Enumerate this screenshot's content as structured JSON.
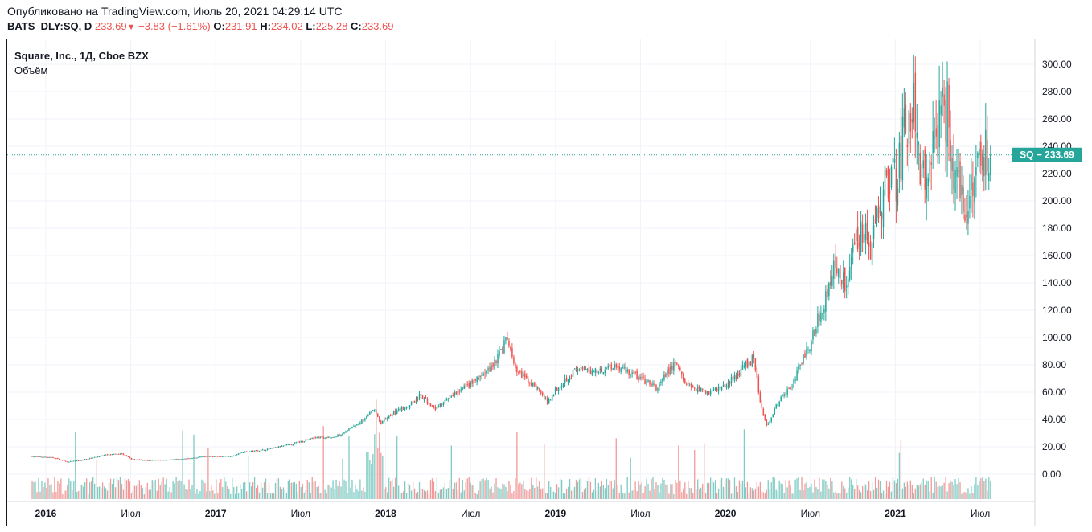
{
  "header": {
    "published": "Опубликовано на TradingView.com, Июль 20, 2021 04:29:14 UTC",
    "symbol": "BATS_DLY:SQ, D",
    "last": "233.69",
    "arrow": "▼",
    "change": "−3.83 (−1.61%)",
    "o_label": "O:",
    "o_value": "231.91",
    "h_label": "H:",
    "h_value": "234.02",
    "l_label": "L:",
    "l_value": "225.28",
    "c_label": "C:",
    "c_value": "233.69"
  },
  "legend": {
    "title": "Square, Inc., 1Д, Cboe BZX",
    "volume": "Объём"
  },
  "price_label": {
    "text": "SQ − 233.69",
    "value": 233.69,
    "color": "#26a69a"
  },
  "colors": {
    "up": "#26a69a",
    "down": "#ef5350",
    "vol_up": "#80cbc4",
    "vol_down": "#f19a99",
    "grid": "#f0f3fa"
  },
  "chart_data": {
    "type": "candlestick",
    "title": "Square, Inc., 1Д, Cboe BZX",
    "ylim": [
      -20,
      310
    ],
    "y_ticks": [
      "300.00",
      "280.00",
      "260.00",
      "240.00",
      "220.00",
      "200.00",
      "180.00",
      "160.00",
      "140.00",
      "120.00",
      "100.00",
      "80.00",
      "60.00",
      "40.00",
      "20.00",
      "0.00"
    ],
    "y_tick_values": [
      300,
      280,
      260,
      240,
      220,
      200,
      180,
      160,
      140,
      120,
      100,
      80,
      60,
      40,
      20,
      0
    ],
    "x_ticks": [
      {
        "label": "2016",
        "t": 2016.0,
        "bold": true
      },
      {
        "label": "Июл",
        "t": 2016.5,
        "bold": false
      },
      {
        "label": "2017",
        "t": 2017.0,
        "bold": true
      },
      {
        "label": "Июл",
        "t": 2017.5,
        "bold": false
      },
      {
        "label": "2018",
        "t": 2018.0,
        "bold": true
      },
      {
        "label": "Июл",
        "t": 2018.5,
        "bold": false
      },
      {
        "label": "2019",
        "t": 2019.0,
        "bold": true
      },
      {
        "label": "Июл",
        "t": 2019.5,
        "bold": false
      },
      {
        "label": "2020",
        "t": 2020.0,
        "bold": true
      },
      {
        "label": "Июл",
        "t": 2020.5,
        "bold": false
      },
      {
        "label": "2021",
        "t": 2021.0,
        "bold": true
      },
      {
        "label": "Июл",
        "t": 2021.5,
        "bold": false
      }
    ],
    "x_range": [
      2015.92,
      2021.58
    ],
    "price_path": [
      [
        2015.92,
        13
      ],
      [
        2016.05,
        12
      ],
      [
        2016.12,
        9
      ],
      [
        2016.2,
        10
      ],
      [
        2016.35,
        14
      ],
      [
        2016.45,
        15
      ],
      [
        2016.5,
        11
      ],
      [
        2016.6,
        10
      ],
      [
        2016.8,
        11
      ],
      [
        2016.95,
        13
      ],
      [
        2017.1,
        13
      ],
      [
        2017.15,
        16
      ],
      [
        2017.3,
        18
      ],
      [
        2017.45,
        22
      ],
      [
        2017.5,
        24
      ],
      [
        2017.6,
        27
      ],
      [
        2017.7,
        27
      ],
      [
        2017.8,
        34
      ],
      [
        2017.88,
        40
      ],
      [
        2017.93,
        48
      ],
      [
        2017.97,
        38
      ],
      [
        2018.05,
        45
      ],
      [
        2018.15,
        52
      ],
      [
        2018.2,
        57
      ],
      [
        2018.3,
        48
      ],
      [
        2018.4,
        58
      ],
      [
        2018.5,
        66
      ],
      [
        2018.6,
        75
      ],
      [
        2018.67,
        88
      ],
      [
        2018.72,
        99
      ],
      [
        2018.75,
        80
      ],
      [
        2018.8,
        72
      ],
      [
        2018.9,
        62
      ],
      [
        2018.95,
        52
      ],
      [
        2019.0,
        62
      ],
      [
        2019.1,
        75
      ],
      [
        2019.25,
        76
      ],
      [
        2019.35,
        80
      ],
      [
        2019.45,
        74
      ],
      [
        2019.55,
        66
      ],
      [
        2019.6,
        63
      ],
      [
        2019.68,
        78
      ],
      [
        2019.72,
        82
      ],
      [
        2019.75,
        68
      ],
      [
        2019.8,
        64
      ],
      [
        2019.9,
        60
      ],
      [
        2020.0,
        65
      ],
      [
        2020.05,
        70
      ],
      [
        2020.12,
        80
      ],
      [
        2020.17,
        86
      ],
      [
        2020.2,
        55
      ],
      [
        2020.24,
        35
      ],
      [
        2020.3,
        50
      ],
      [
        2020.4,
        68
      ],
      [
        2020.48,
        90
      ],
      [
        2020.55,
        115
      ],
      [
        2020.6,
        135
      ],
      [
        2020.65,
        155
      ],
      [
        2020.7,
        140
      ],
      [
        2020.75,
        165
      ],
      [
        2020.8,
        185
      ],
      [
        2020.85,
        160
      ],
      [
        2020.9,
        190
      ],
      [
        2020.95,
        222
      ],
      [
        2021.0,
        215
      ],
      [
        2021.05,
        245
      ],
      [
        2021.1,
        275
      ],
      [
        2021.15,
        210
      ],
      [
        2021.2,
        230
      ],
      [
        2021.25,
        255
      ],
      [
        2021.3,
        270
      ],
      [
        2021.35,
        220
      ],
      [
        2021.42,
        195
      ],
      [
        2021.45,
        215
      ],
      [
        2021.5,
        240
      ],
      [
        2021.54,
        235
      ],
      [
        2021.56,
        233.69
      ]
    ]
  }
}
